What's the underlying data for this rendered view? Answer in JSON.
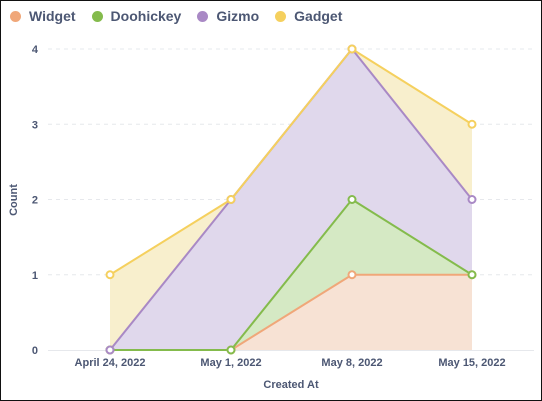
{
  "chart_data": {
    "type": "area",
    "stacked": true,
    "title": "",
    "xlabel": "Created At",
    "ylabel": "Count",
    "ylim": [
      0,
      4
    ],
    "y_ticks": [
      "0",
      "1",
      "2",
      "3",
      "4"
    ],
    "categories": [
      "April 24, 2022",
      "May 1, 2022",
      "May 8, 2022",
      "May 15, 2022"
    ],
    "series": [
      {
        "name": "Widget",
        "color": "#f0a779",
        "fill": "#f7e2d4",
        "values": [
          0,
          0,
          1,
          1
        ]
      },
      {
        "name": "Doohickey",
        "color": "#84bb4c",
        "fill": "#d5e9c4",
        "values": [
          0,
          0,
          1,
          0
        ]
      },
      {
        "name": "Gizmo",
        "color": "#a989c5",
        "fill": "#e0d8ec",
        "values": [
          0,
          2,
          2,
          1
        ]
      },
      {
        "name": "Gadget",
        "color": "#f5d05e",
        "fill": "#f8efcd",
        "values": [
          1,
          0,
          0,
          1
        ]
      }
    ],
    "legend_position": "top-left",
    "grid": true
  }
}
